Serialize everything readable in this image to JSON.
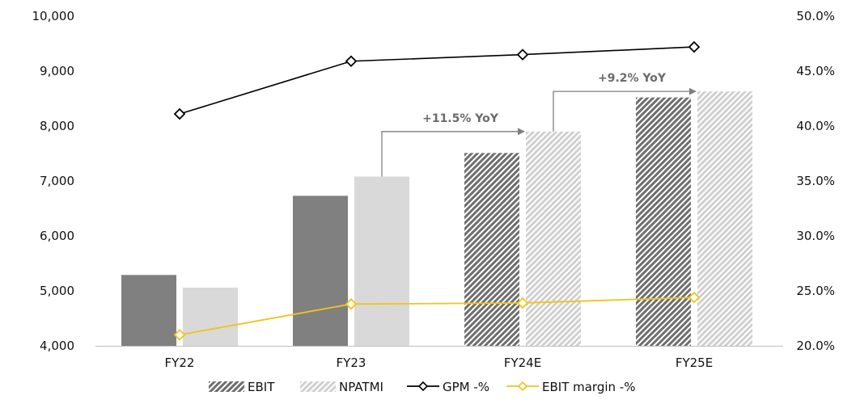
{
  "chart_data": {
    "type": "bar",
    "categories": [
      "FY22",
      "FY23",
      "FY24E",
      "FY25E"
    ],
    "bar_series": [
      {
        "name": "EBIT",
        "values": [
          5290,
          6730,
          7510,
          8520
        ],
        "color": "#808080",
        "hatched_for": [
          "FY24E",
          "FY25E"
        ]
      },
      {
        "name": "NPATMI",
        "values": [
          5060,
          7080,
          7900,
          8630
        ],
        "color": "#d9d9d9",
        "hatched_for": [
          "FY24E",
          "FY25E"
        ]
      }
    ],
    "line_series": [
      {
        "name": "GPM -%",
        "values": [
          41.1,
          45.9,
          46.5,
          47.2
        ],
        "color": "#000000",
        "marker": "diamond",
        "axis": "right"
      },
      {
        "name": "EBIT margin -%",
        "values": [
          21.0,
          23.8,
          23.9,
          24.4
        ],
        "color": "#f2c318",
        "marker": "diamond",
        "axis": "right"
      }
    ],
    "y_left": {
      "min": 4000,
      "max": 10000,
      "ticks": [
        "4,000",
        "5,000",
        "6,000",
        "7,000",
        "8,000",
        "9,000",
        "10,000"
      ]
    },
    "y_right": {
      "min": 20,
      "max": 50,
      "ticks": [
        "20.0%",
        "25.0%",
        "30.0%",
        "35.0%",
        "40.0%",
        "45.0%",
        "50.0%"
      ]
    },
    "annotations": [
      {
        "text": "+11.5% YoY",
        "from": "FY23",
        "to": "FY24E"
      },
      {
        "text": "+9.2% YoY",
        "from": "FY24E",
        "to": "FY25E"
      }
    ],
    "legend": {
      "position": "bottom",
      "items": [
        "EBIT",
        "NPATMI",
        "GPM -%",
        "EBIT margin -%"
      ]
    },
    "grid": false
  }
}
